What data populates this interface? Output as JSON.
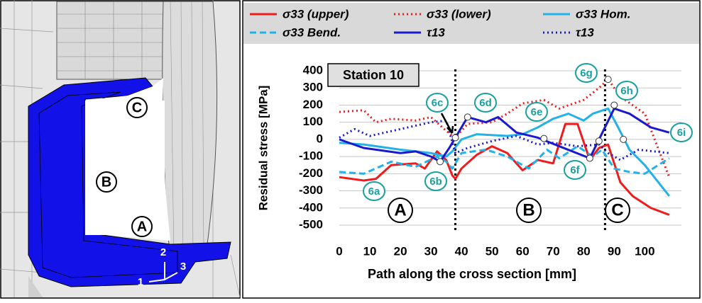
{
  "rendering": {
    "labels": [
      "C",
      "B",
      "A"
    ],
    "axes": [
      "1",
      "2",
      "3"
    ]
  },
  "chart_data": {
    "type": "line",
    "title": "Station 10",
    "xlabel": "Path along the cross section [mm]",
    "ylabel": "Residual stress [MPa]",
    "xlim": [
      0,
      112
    ],
    "xticks": [
      0,
      10,
      20,
      30,
      40,
      50,
      60,
      70,
      80,
      90,
      100
    ],
    "ylim": [
      -500,
      400
    ],
    "yticks": [
      -500,
      -400,
      -300,
      -200,
      -100,
      0,
      100,
      200,
      300,
      400
    ],
    "grid": true,
    "series": [
      {
        "name": "σ33 (upper)",
        "color": "#ee1c1c",
        "dash": "solid",
        "x": [
          0,
          8,
          12,
          17,
          25,
          28,
          32,
          35,
          37,
          38,
          40,
          45,
          50,
          55,
          60,
          65,
          70,
          74,
          78,
          82,
          85,
          88,
          92,
          96,
          102,
          108
        ],
        "values": [
          -220,
          -240,
          -230,
          -150,
          -140,
          -170,
          -70,
          -120,
          -210,
          -230,
          -170,
          -90,
          -40,
          -80,
          -180,
          -120,
          -140,
          90,
          90,
          -120,
          -50,
          -30,
          -250,
          -330,
          -400,
          -440
        ]
      },
      {
        "name": "σ33 (lower)",
        "color": "#ee1c1c",
        "dash": "dotted",
        "x": [
          0,
          8,
          12,
          17,
          25,
          30,
          35,
          38,
          42,
          50,
          55,
          60,
          67,
          72,
          80,
          85,
          88,
          92,
          100,
          108
        ],
        "values": [
          160,
          170,
          100,
          120,
          110,
          130,
          50,
          10,
          90,
          100,
          150,
          210,
          230,
          180,
          230,
          300,
          350,
          250,
          150,
          -220
        ]
      },
      {
        "name": "σ33 Hom.",
        "color": "#22b2e6",
        "dash": "solid",
        "x": [
          0,
          8,
          20,
          30,
          35,
          37,
          40,
          45,
          55,
          60,
          65,
          70,
          75,
          80,
          83,
          88,
          91,
          95,
          100,
          108
        ],
        "values": [
          -20,
          -30,
          -60,
          -80,
          -100,
          -70,
          0,
          30,
          20,
          30,
          70,
          120,
          150,
          110,
          150,
          180,
          80,
          -60,
          -150,
          -330
        ]
      },
      {
        "name": "σ33 Bend.",
        "color": "#22b2e6",
        "dash": "dashed",
        "x": [
          0,
          8,
          17,
          25,
          32,
          35,
          37,
          40,
          48,
          55,
          62,
          68,
          72,
          78,
          83,
          86,
          90,
          95,
          100,
          108
        ],
        "values": [
          -190,
          -200,
          -130,
          -160,
          -100,
          -130,
          -170,
          -80,
          -60,
          -100,
          -170,
          -60,
          -110,
          -40,
          -100,
          -60,
          -170,
          -190,
          -200,
          -110
        ]
      },
      {
        "name": "τ13",
        "color": "#1a1acc",
        "dash": "solid",
        "x": [
          0,
          8,
          20,
          25,
          30,
          33,
          36,
          38,
          42,
          48,
          52,
          58,
          65,
          72,
          82,
          90,
          95,
          102,
          108
        ],
        "values": [
          0,
          -50,
          -80,
          -70,
          -100,
          -130,
          -50,
          10,
          130,
          100,
          130,
          40,
          10,
          -40,
          -110,
          180,
          150,
          70,
          40
        ]
      },
      {
        "name": "τ13",
        "color": "#1a1acc",
        "dash": "dotted",
        "x": [
          0,
          5,
          10,
          20,
          30,
          35,
          38,
          42,
          50,
          58,
          65,
          70,
          78,
          85,
          88,
          92,
          98,
          108
        ],
        "values": [
          10,
          60,
          20,
          60,
          100,
          110,
          -80,
          -50,
          -10,
          20,
          -30,
          -20,
          -40,
          -30,
          -80,
          -120,
          -60,
          -80
        ]
      }
    ],
    "markers": [
      {
        "x": 33,
        "y": -130
      },
      {
        "x": 38,
        "y": 10
      },
      {
        "x": 42,
        "y": 130
      },
      {
        "x": 67,
        "y": 5
      },
      {
        "x": 82,
        "y": -110
      },
      {
        "x": 85,
        "y": -10
      },
      {
        "x": 88,
        "y": 350
      },
      {
        "x": 90,
        "y": 200
      },
      {
        "x": 93,
        "y": 0
      }
    ],
    "callouts": [
      "6a",
      "6b",
      "6c",
      "6d",
      "6e",
      "6f",
      "6g",
      "6h",
      "6i"
    ],
    "sections": [
      38,
      87
    ],
    "section_labels": [
      "A",
      "B",
      "C"
    ]
  }
}
